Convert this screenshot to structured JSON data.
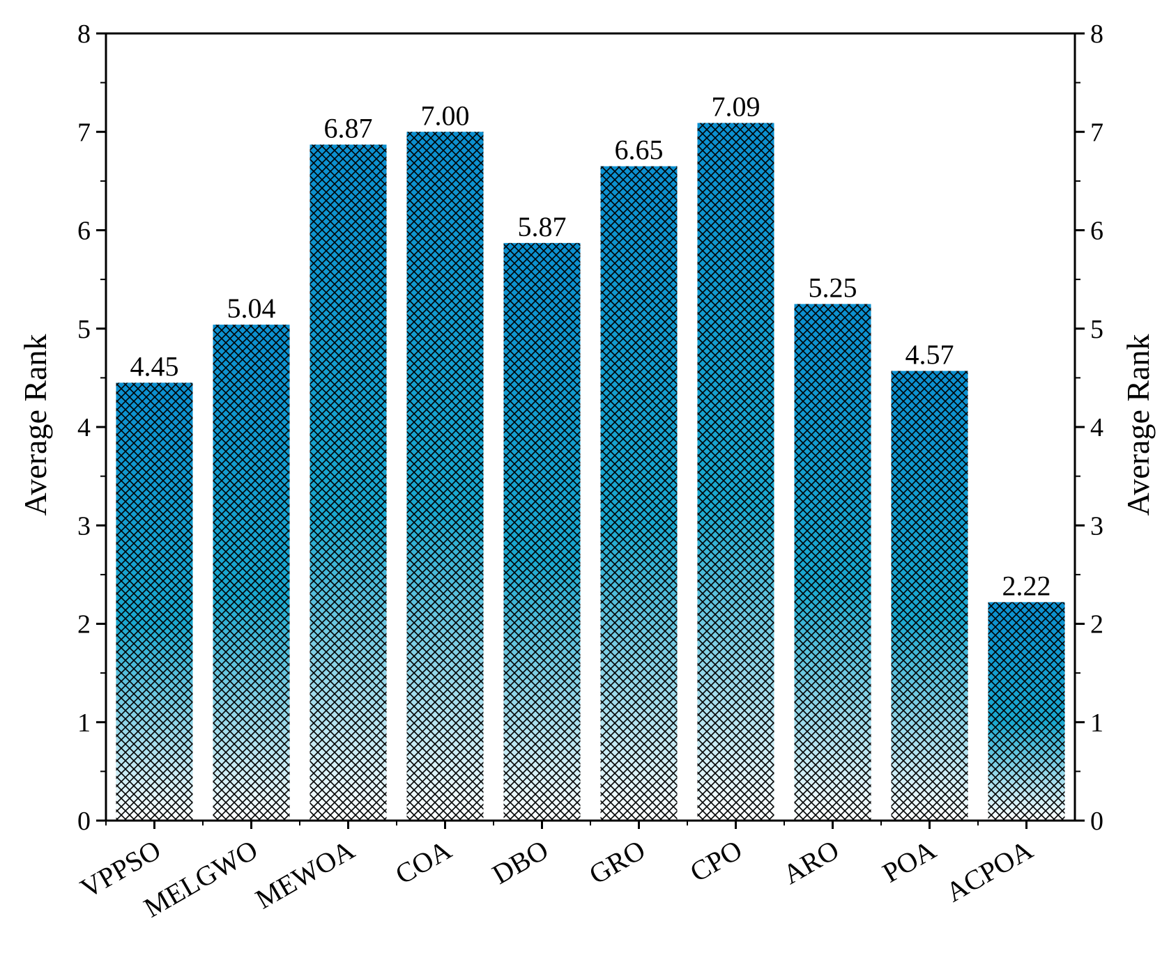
{
  "chart_data": {
    "type": "bar",
    "categories": [
      "VPPSO",
      "MELGWO",
      "MEWOA",
      "COA",
      "DBO",
      "GRO",
      "CPO",
      "ARO",
      "POA",
      "ACPOA"
    ],
    "values": [
      4.45,
      5.04,
      6.87,
      7.0,
      5.87,
      6.65,
      7.09,
      5.25,
      4.57,
      2.22
    ],
    "data_labels": [
      "4.45",
      "5.04",
      "6.87",
      "7.00",
      "5.87",
      "6.65",
      "7.09",
      "5.25",
      "4.57",
      "2.22"
    ],
    "ylabel": "Average Rank",
    "ylabel_right": "Average Rank",
    "ylim": [
      0,
      8
    ],
    "yticks": [
      "0",
      "1",
      "2",
      "3",
      "4",
      "5",
      "6",
      "7",
      "8"
    ],
    "grid": false,
    "bar_fill": "vertical gradient with cross-hatch pattern",
    "colors": {
      "bar_top": "#0b8fcf",
      "bar_middle": "#1aa8cf",
      "bar_bottom": "#ffffff",
      "hatch": "#000000",
      "axis": "#000000"
    }
  }
}
